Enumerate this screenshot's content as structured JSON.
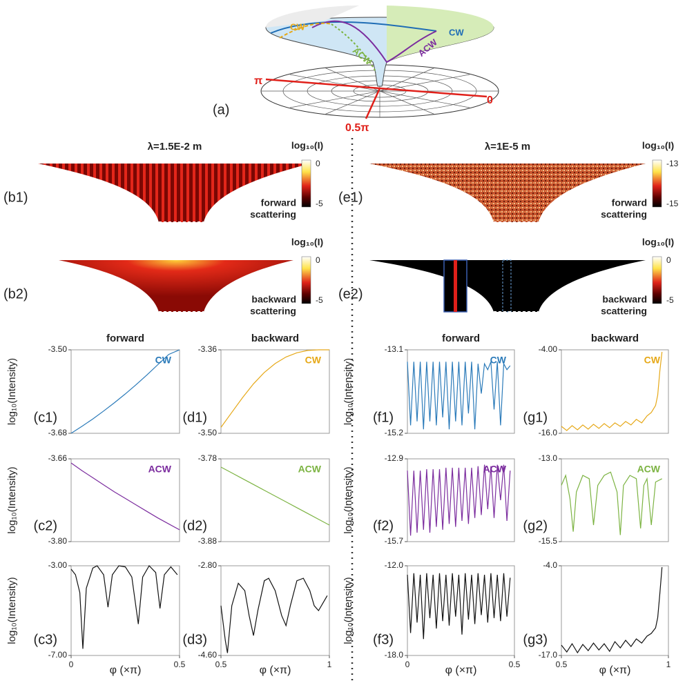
{
  "figure": {
    "diagram": {
      "label": "(a)",
      "cw_top": "CW",
      "acw_top": "ACW",
      "cw_left": "CW",
      "acw_left": "ACW",
      "pi": "π",
      "zero": "0",
      "half_pi": "0.5π"
    },
    "left_heading": "λ=1.5E-2 m",
    "right_heading": "λ=1E-5 m",
    "panels": [
      {
        "label": "(b1)",
        "colorbar_label": "log₁₀(I)",
        "colorbar_ticks": [
          "0",
          "-5"
        ],
        "caption": [
          "forward",
          "scattering"
        ]
      },
      {
        "label": "(b2)",
        "colorbar_label": "log₁₀(I)",
        "colorbar_ticks": [
          "0",
          "-5"
        ],
        "caption": [
          "backward",
          "scattering"
        ]
      },
      {
        "label": "(e1)",
        "colorbar_label": "log₁₀(I)",
        "colorbar_ticks": [
          "-13",
          "-15"
        ],
        "caption": [
          "forward",
          "scattering"
        ]
      },
      {
        "label": "(e2)",
        "colorbar_label": "log₁₀(I)",
        "colorbar_ticks": [
          "0",
          "-5"
        ],
        "caption": [
          "backward",
          "scattering"
        ]
      }
    ]
  },
  "chart_data": [
    {
      "type": "line",
      "label": "(c1)",
      "title": "forward",
      "ylabel": "log₁₀(Intensity)",
      "xlim": [
        0,
        0.5
      ],
      "ylim": [
        -3.68,
        -3.5
      ],
      "yticks": [
        {
          "value": -3.5,
          "label": "-3.50"
        },
        {
          "value": -3.68,
          "label": "-3.68"
        }
      ],
      "x": [
        0,
        0.05,
        0.1,
        0.15,
        0.2,
        0.25,
        0.3,
        0.35,
        0.4,
        0.45,
        0.5
      ],
      "series": [
        {
          "name": "CW",
          "color": "#2a7ab9",
          "values": [
            -3.68,
            -3.665,
            -3.649,
            -3.632,
            -3.614,
            -3.595,
            -3.575,
            -3.554,
            -3.532,
            -3.51,
            -3.5
          ]
        }
      ]
    },
    {
      "type": "line",
      "label": "(d1)",
      "title": "backward",
      "xlim": [
        0.5,
        1
      ],
      "ylim": [
        -3.5,
        -3.36
      ],
      "yticks": [
        {
          "value": -3.36,
          "label": "-3.36"
        },
        {
          "value": -3.5,
          "label": "-3.50"
        }
      ],
      "x": [
        0.5,
        0.55,
        0.6,
        0.65,
        0.7,
        0.75,
        0.8,
        0.85,
        0.9,
        0.95,
        1
      ],
      "series": [
        {
          "name": "CW",
          "color": "#e6a817",
          "values": [
            -3.49,
            -3.465,
            -3.44,
            -3.417,
            -3.398,
            -3.383,
            -3.372,
            -3.365,
            -3.361,
            -3.36,
            -3.36
          ]
        }
      ]
    },
    {
      "type": "line",
      "label": "(f1)",
      "title": "forward",
      "ylabel": "log₁₀(Intensity)",
      "xlim": [
        0,
        0.5
      ],
      "ylim": [
        -15.2,
        -13.1
      ],
      "yticks": [
        {
          "value": -13.1,
          "label": "-13.1"
        },
        {
          "value": -15.2,
          "label": "-15.2"
        }
      ],
      "x": [
        0,
        0.015,
        0.03,
        0.045,
        0.06,
        0.075,
        0.09,
        0.105,
        0.12,
        0.135,
        0.15,
        0.165,
        0.18,
        0.195,
        0.21,
        0.225,
        0.24,
        0.255,
        0.27,
        0.285,
        0.3,
        0.315,
        0.33,
        0.345,
        0.36,
        0.375,
        0.39,
        0.405,
        0.42,
        0.435,
        0.45,
        0.465,
        0.48
      ],
      "series": [
        {
          "name": "CW",
          "color": "#2a7ab9",
          "values": [
            -13.4,
            -15.0,
            -13.4,
            -14.9,
            -13.4,
            -15.1,
            -13.4,
            -14.9,
            -13.4,
            -15.0,
            -13.4,
            -14.8,
            -13.4,
            -15.1,
            -13.4,
            -14.9,
            -13.4,
            -15.0,
            -13.4,
            -14.7,
            -13.4,
            -15.1,
            -13.45,
            -14.2,
            -13.45,
            -13.6,
            -13.4,
            -14.6,
            -13.4,
            -15.0,
            -13.45,
            -13.6,
            -13.5
          ]
        }
      ]
    },
    {
      "type": "line",
      "label": "(g1)",
      "title": "backward",
      "xlim": [
        0.5,
        1
      ],
      "ylim": [
        -16,
        -4
      ],
      "yticks": [
        {
          "value": -4,
          "label": "-4.00"
        },
        {
          "value": -16,
          "label": "-16.0"
        }
      ],
      "x": [
        0.5,
        0.525,
        0.55,
        0.575,
        0.6,
        0.625,
        0.65,
        0.675,
        0.7,
        0.725,
        0.75,
        0.775,
        0.8,
        0.825,
        0.85,
        0.875,
        0.9,
        0.92,
        0.94,
        0.95,
        0.96,
        0.97
      ],
      "series": [
        {
          "name": "CW",
          "color": "#e6a817",
          "values": [
            -15.0,
            -15.6,
            -14.9,
            -15.5,
            -14.8,
            -15.4,
            -14.7,
            -15.3,
            -14.6,
            -15.2,
            -14.5,
            -15.0,
            -14.3,
            -14.8,
            -14.0,
            -14.5,
            -13.5,
            -13.0,
            -12.0,
            -10.5,
            -7.0,
            -4.3
          ]
        }
      ]
    },
    {
      "type": "line",
      "label": "(c2)",
      "ylabel": "log₁₀(Intensity)",
      "xlim": [
        0,
        0.5
      ],
      "ylim": [
        -3.8,
        -3.66
      ],
      "yticks": [
        {
          "value": -3.66,
          "label": "-3.66"
        },
        {
          "value": -3.8,
          "label": "-3.80"
        }
      ],
      "x": [
        0,
        0.05,
        0.1,
        0.15,
        0.2,
        0.25,
        0.3,
        0.35,
        0.4,
        0.45,
        0.5
      ],
      "series": [
        {
          "name": "ACW",
          "color": "#7b2c9e",
          "values": [
            -3.667,
            -3.68,
            -3.692,
            -3.704,
            -3.716,
            -3.727,
            -3.738,
            -3.749,
            -3.76,
            -3.77,
            -3.78
          ]
        }
      ]
    },
    {
      "type": "line",
      "label": "(d2)",
      "xlim": [
        0.5,
        1
      ],
      "ylim": [
        -3.88,
        -3.78
      ],
      "yticks": [
        {
          "value": -3.78,
          "label": "-3.78"
        },
        {
          "value": -3.88,
          "label": "-3.88"
        }
      ],
      "x": [
        0.5,
        0.55,
        0.6,
        0.65,
        0.7,
        0.75,
        0.8,
        0.85,
        0.9,
        0.95,
        1
      ],
      "series": [
        {
          "name": "ACW",
          "color": "#7cb342",
          "values": [
            -3.79,
            -3.797,
            -3.804,
            -3.811,
            -3.818,
            -3.825,
            -3.832,
            -3.839,
            -3.846,
            -3.853,
            -3.86
          ]
        }
      ]
    },
    {
      "type": "line",
      "label": "(f2)",
      "ylabel": "log₁₀(Intensity)",
      "xlim": [
        0,
        0.5
      ],
      "ylim": [
        -15.7,
        -12.9
      ],
      "yticks": [
        {
          "value": -12.9,
          "label": "-12.9"
        },
        {
          "value": -15.7,
          "label": "-15.7"
        }
      ],
      "x": [
        0,
        0.015,
        0.03,
        0.045,
        0.06,
        0.075,
        0.09,
        0.105,
        0.12,
        0.135,
        0.15,
        0.165,
        0.18,
        0.195,
        0.21,
        0.225,
        0.24,
        0.255,
        0.27,
        0.285,
        0.3,
        0.315,
        0.33,
        0.345,
        0.36,
        0.375,
        0.39,
        0.405,
        0.42,
        0.435,
        0.45,
        0.465,
        0.48
      ],
      "series": [
        {
          "name": "ACW",
          "color": "#7b2c9e",
          "values": [
            -13.3,
            -15.5,
            -13.3,
            -15.4,
            -13.3,
            -15.3,
            -13.25,
            -15.4,
            -13.25,
            -15.2,
            -13.25,
            -15.3,
            -13.2,
            -15.1,
            -13.2,
            -15.2,
            -13.2,
            -15.0,
            -13.2,
            -15.1,
            -13.2,
            -14.9,
            -13.15,
            -14.8,
            -13.1,
            -14.6,
            -13.15,
            -14.9,
            -13.1,
            -14.3,
            -13.1,
            -15.0,
            -13.3
          ]
        }
      ]
    },
    {
      "type": "line",
      "label": "(g2)",
      "xlim": [
        0.5,
        1
      ],
      "ylim": [
        -15.5,
        -13
      ],
      "yticks": [
        {
          "value": -13,
          "label": "-13.0"
        },
        {
          "value": -15.5,
          "label": "-15.5"
        }
      ],
      "x": [
        0.5,
        0.52,
        0.54,
        0.555,
        0.57,
        0.6,
        0.63,
        0.65,
        0.67,
        0.7,
        0.73,
        0.76,
        0.775,
        0.79,
        0.82,
        0.85,
        0.87,
        0.885,
        0.9,
        0.92,
        0.94,
        0.97
      ],
      "series": [
        {
          "name": "ACW",
          "color": "#7cb342",
          "values": [
            -13.8,
            -13.5,
            -14.2,
            -15.2,
            -14.0,
            -13.5,
            -13.6,
            -15.0,
            -13.8,
            -13.5,
            -13.4,
            -14.0,
            -15.3,
            -13.8,
            -13.5,
            -13.6,
            -15.1,
            -13.8,
            -13.6,
            -15.0,
            -13.7,
            -13.6
          ]
        }
      ]
    },
    {
      "type": "line",
      "label": "(c3)",
      "ylabel": "log₁₀(Intensity)",
      "xlabel": "φ (×π)",
      "xlim": [
        0,
        0.5
      ],
      "ylim": [
        -7,
        -3
      ],
      "yticks": [
        {
          "value": -3,
          "label": "-3.00"
        },
        {
          "value": -7,
          "label": "-7.00"
        }
      ],
      "xticks": [
        0,
        0.5
      ],
      "x": [
        0,
        0.02,
        0.04,
        0.054,
        0.07,
        0.1,
        0.12,
        0.15,
        0.17,
        0.19,
        0.22,
        0.25,
        0.28,
        0.31,
        0.33,
        0.36,
        0.39,
        0.41,
        0.43,
        0.46,
        0.49
      ],
      "series": [
        {
          "color": "#111111",
          "values": [
            -3.15,
            -3.4,
            -4.2,
            -6.7,
            -4.0,
            -3.1,
            -3.0,
            -3.4,
            -4.85,
            -3.4,
            -3.0,
            -3.05,
            -3.5,
            -5.6,
            -3.5,
            -3.0,
            -3.3,
            -4.9,
            -3.4,
            -3.05,
            -3.4
          ]
        }
      ]
    },
    {
      "type": "line",
      "label": "(d3)",
      "xlabel": "φ (×π)",
      "xlim": [
        0.5,
        1
      ],
      "ylim": [
        -4.6,
        -2.8
      ],
      "yticks": [
        {
          "value": -2.8,
          "label": "-2.80"
        },
        {
          "value": -4.6,
          "label": "-4.60"
        }
      ],
      "xticks": [
        0.5,
        1
      ],
      "x": [
        0.5,
        0.52,
        0.53,
        0.55,
        0.58,
        0.61,
        0.63,
        0.65,
        0.67,
        0.7,
        0.72,
        0.75,
        0.78,
        0.8,
        0.82,
        0.85,
        0.88,
        0.91,
        0.93,
        0.95,
        0.97,
        0.99
      ],
      "series": [
        {
          "color": "#111111",
          "values": [
            -3.6,
            -4.3,
            -4.55,
            -3.6,
            -3.15,
            -3.3,
            -3.8,
            -4.2,
            -3.7,
            -3.1,
            -3.05,
            -3.3,
            -3.8,
            -4.0,
            -3.6,
            -3.1,
            -3.05,
            -3.3,
            -3.6,
            -3.7,
            -3.55,
            -3.4
          ]
        }
      ]
    },
    {
      "type": "line",
      "label": "(f3)",
      "ylabel": "log₁₀(Intensity)",
      "xlabel": "φ (×π)",
      "xlim": [
        0,
        0.5
      ],
      "ylim": [
        -18,
        -12
      ],
      "yticks": [
        {
          "value": -12,
          "label": "-12.0"
        },
        {
          "value": -18,
          "label": "-18.0"
        }
      ],
      "xticks": [
        0,
        0.5
      ],
      "x": [
        0,
        0.015,
        0.03,
        0.045,
        0.06,
        0.075,
        0.09,
        0.105,
        0.12,
        0.135,
        0.15,
        0.165,
        0.18,
        0.195,
        0.21,
        0.225,
        0.24,
        0.255,
        0.27,
        0.285,
        0.3,
        0.315,
        0.33,
        0.345,
        0.36,
        0.375,
        0.39,
        0.405,
        0.42,
        0.435,
        0.45,
        0.465,
        0.48
      ],
      "series": [
        {
          "color": "#111111",
          "values": [
            -12.6,
            -16.5,
            -12.5,
            -15.8,
            -12.6,
            -16.9,
            -12.5,
            -15.5,
            -12.6,
            -16.2,
            -12.5,
            -15.7,
            -12.6,
            -16.0,
            -12.5,
            -15.4,
            -12.6,
            -16.6,
            -12.5,
            -15.6,
            -12.6,
            -15.9,
            -12.5,
            -15.3,
            -12.6,
            -15.8,
            -12.5,
            -15.5,
            -12.6,
            -15.7,
            -12.5,
            -15.4,
            -12.8
          ]
        }
      ]
    },
    {
      "type": "line",
      "label": "(g3)",
      "xlabel": "φ (×π)",
      "xlim": [
        0.5,
        1
      ],
      "ylim": [
        -17,
        -4
      ],
      "yticks": [
        {
          "value": -4,
          "label": "-4.0"
        },
        {
          "value": -17,
          "label": "-17.0"
        }
      ],
      "xticks": [
        0.5,
        1
      ],
      "x": [
        0.5,
        0.525,
        0.55,
        0.575,
        0.6,
        0.625,
        0.65,
        0.675,
        0.7,
        0.725,
        0.75,
        0.775,
        0.8,
        0.825,
        0.85,
        0.875,
        0.9,
        0.92,
        0.94,
        0.95,
        0.96,
        0.97
      ],
      "series": [
        {
          "color": "#111111",
          "values": [
            -15.5,
            -16.5,
            -15.3,
            -16.6,
            -15.4,
            -16.3,
            -15.2,
            -16.2,
            -15.3,
            -16.4,
            -15.0,
            -15.9,
            -14.8,
            -15.7,
            -14.6,
            -15.2,
            -14.2,
            -13.8,
            -13.0,
            -11.5,
            -8.0,
            -4.2
          ]
        }
      ]
    }
  ]
}
